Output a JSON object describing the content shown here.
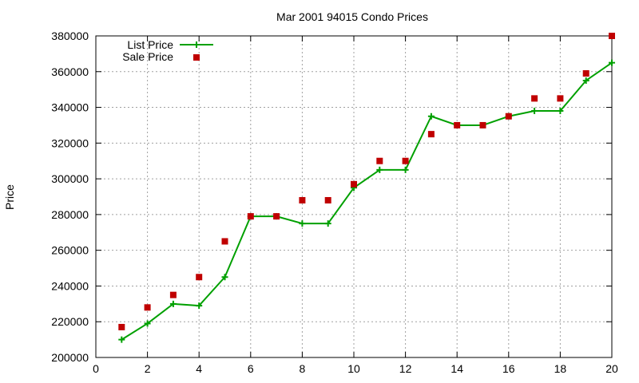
{
  "chart_data": {
    "type": "line",
    "title": "Mar 2001 94015 Condo Prices",
    "xlabel": "",
    "ylabel": "Price",
    "xlim": [
      0,
      20
    ],
    "ylim": [
      200000,
      380000
    ],
    "x_ticks": [
      0,
      2,
      4,
      6,
      8,
      10,
      12,
      14,
      16,
      18,
      20
    ],
    "y_ticks": [
      200000,
      220000,
      240000,
      260000,
      280000,
      300000,
      320000,
      340000,
      360000,
      380000
    ],
    "grid": true,
    "legend_position": "top-left",
    "series": [
      {
        "name": "List Price",
        "style": "line-points",
        "marker": "plus",
        "color": "#00a000",
        "x": [
          1,
          2,
          3,
          4,
          5,
          6,
          7,
          8,
          9,
          10,
          11,
          12,
          13,
          14,
          15,
          16,
          17,
          18,
          19,
          20
        ],
        "y": [
          210000,
          219000,
          230000,
          229000,
          245000,
          279000,
          279000,
          275000,
          275000,
          295000,
          305000,
          305000,
          335000,
          330000,
          330000,
          335000,
          338000,
          338000,
          355000,
          365000
        ]
      },
      {
        "name": "Sale Price",
        "style": "points",
        "marker": "square",
        "color": "#c00000",
        "x": [
          1,
          2,
          3,
          4,
          5,
          6,
          7,
          8,
          9,
          10,
          11,
          12,
          13,
          14,
          15,
          16,
          17,
          18,
          19,
          20
        ],
        "y": [
          217000,
          228000,
          235000,
          245000,
          265000,
          279000,
          279000,
          288000,
          288000,
          297000,
          310000,
          310000,
          325000,
          330000,
          330000,
          335000,
          345000,
          345000,
          359000,
          380000
        ]
      }
    ]
  }
}
